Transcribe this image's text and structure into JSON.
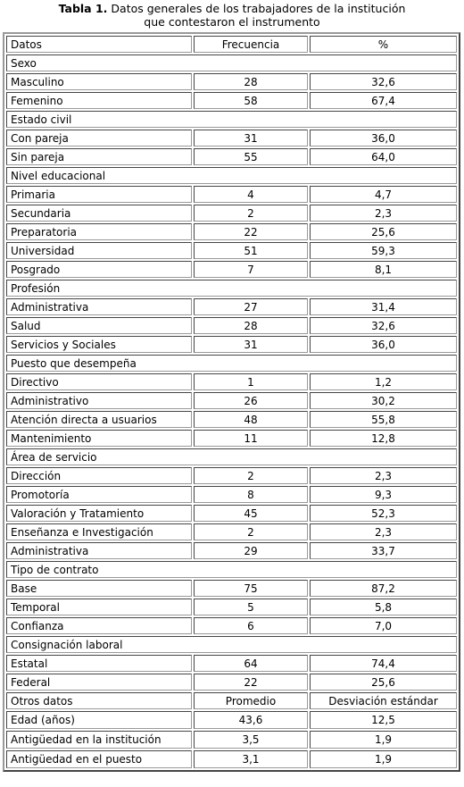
{
  "title": {
    "label": "Tabla 1.",
    "lines": [
      "Datos generales de los trabajadores de la institución",
      "que contestaron el instrumento"
    ]
  },
  "table": {
    "rows": [
      [
        "Datos",
        "Frecuencia",
        "%"
      ],
      [
        "Sexo"
      ],
      [
        "Masculino",
        "28",
        "32,6"
      ],
      [
        "Femenino",
        "58",
        "67,4"
      ],
      [
        "Estado civil"
      ],
      [
        "Con pareja",
        "31",
        "36,0"
      ],
      [
        "Sin pareja",
        "55",
        "64,0"
      ],
      [
        "Nivel educacional"
      ],
      [
        "Primaria",
        "4",
        "4,7"
      ],
      [
        "Secundaria",
        "2",
        "2,3"
      ],
      [
        "Preparatoria",
        "22",
        "25,6"
      ],
      [
        "Universidad",
        "51",
        "59,3"
      ],
      [
        "Posgrado",
        "7",
        "8,1"
      ],
      [
        "Profesión"
      ],
      [
        "Administrativa",
        "27",
        "31,4"
      ],
      [
        "Salud",
        "28",
        "32,6"
      ],
      [
        "Servicios y Sociales",
        "31",
        "36,0"
      ],
      [
        "Puesto que desempeña"
      ],
      [
        "Directivo",
        "1",
        "1,2"
      ],
      [
        "Administrativo",
        "26",
        "30,2"
      ],
      [
        "Atención directa a usuarios",
        "48",
        "55,8"
      ],
      [
        "Mantenimiento",
        "11",
        "12,8"
      ],
      [
        "Área de servicio"
      ],
      [
        "Dirección",
        "2",
        "2,3"
      ],
      [
        "Promotoría",
        "8",
        "9,3"
      ],
      [
        "Valoración y Tratamiento",
        "45",
        "52,3"
      ],
      [
        "Enseñanza e Investigación",
        "2",
        "2,3"
      ],
      [
        "Administrativa",
        "29",
        "33,7"
      ],
      [
        "Tipo de contrato"
      ],
      [
        "Base",
        "75",
        "87,2"
      ],
      [
        "Temporal",
        "5",
        "5,8"
      ],
      [
        "Confianza",
        "6",
        "7,0"
      ],
      [
        "Consignación laboral"
      ],
      [
        "Estatal",
        "64",
        "74,4"
      ],
      [
        "Federal",
        "22",
        "25,6"
      ],
      [
        "Otros datos",
        "Promedio",
        "Desviación estándar"
      ],
      [
        "Edad (años)",
        "43,6",
        "12,5"
      ],
      [
        "Antigüedad en la institución",
        "3,5",
        "1,9"
      ],
      [
        "Antigüedad en el puesto",
        "3,1",
        "1,9"
      ]
    ]
  }
}
